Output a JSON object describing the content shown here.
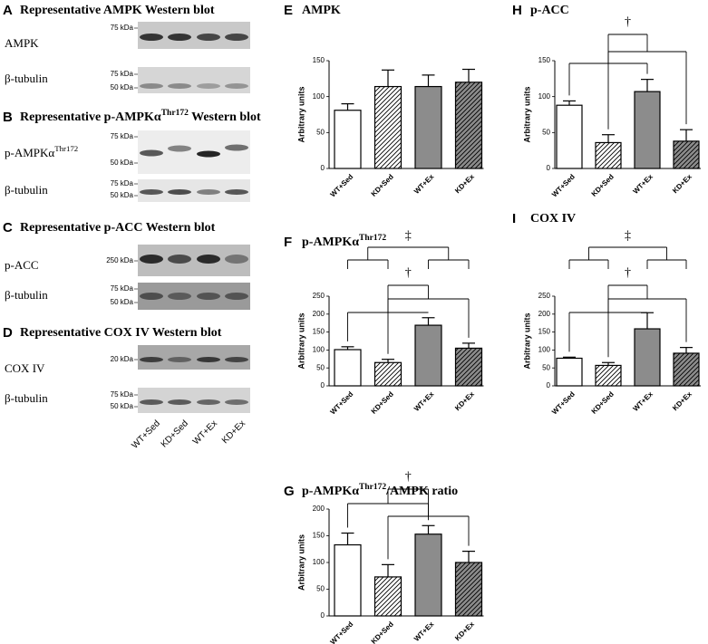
{
  "blots": [
    {
      "panel": "A",
      "title": [
        {
          "text": "Representative AMPK Western blot"
        }
      ],
      "rows": [
        {
          "label": [
            {
              "text": "AMPK"
            }
          ],
          "markers": [
            "75 kDa"
          ]
        },
        {
          "label": [
            {
              "text": "β-tubulin"
            }
          ],
          "markers": [
            "75 kDa",
            "50 kDa"
          ]
        }
      ]
    },
    {
      "panel": "B",
      "title": [
        {
          "text": "Representative p-AMPKα"
        },
        {
          "text": "Thr172",
          "sup": true
        },
        {
          "text": " Western blot"
        }
      ],
      "rows": [
        {
          "label": [
            {
              "text": "p-AMPKα"
            },
            {
              "text": "Thr172",
              "sup": true
            }
          ],
          "markers": [
            "75 kDa",
            "50 kDa"
          ]
        },
        {
          "label": [
            {
              "text": "β-tubulin"
            }
          ],
          "markers": [
            "75 kDa",
            "50 kDa"
          ]
        }
      ]
    },
    {
      "panel": "C",
      "title": [
        {
          "text": "Representative p-ACC Western blot"
        }
      ],
      "rows": [
        {
          "label": [
            {
              "text": "p-ACC"
            }
          ],
          "markers": [
            "250 kDa"
          ]
        },
        {
          "label": [
            {
              "text": "β-tubulin"
            }
          ],
          "markers": [
            "75 kDa",
            "50 kDa"
          ]
        }
      ]
    },
    {
      "panel": "D",
      "title": [
        {
          "text": "Representative COX IV Western blot"
        }
      ],
      "rows": [
        {
          "label": [
            {
              "text": "COX IV"
            }
          ],
          "markers": [
            "20 kDa"
          ]
        },
        {
          "label": [
            {
              "text": "β-tubulin"
            }
          ],
          "markers": [
            "75 kDa",
            "50 kDa"
          ]
        }
      ]
    }
  ],
  "lanes": [
    "WT+Sed",
    "KD+Sed",
    "WT+Ex",
    "KD+Ex"
  ],
  "chart_data": [
    {
      "type": "bar",
      "panel": "E",
      "title": [
        {
          "text": "AMPK"
        }
      ],
      "y_label": "Arbitrary units",
      "categories": [
        "WT+Sed",
        "KD+Sed",
        "WT+Ex",
        "KD+Ex"
      ],
      "values": [
        81,
        114,
        114,
        120
      ],
      "errors": [
        9,
        23,
        16,
        18
      ],
      "colors": [
        "#ffffff",
        "#ffffff",
        "#8c8c8c",
        "#8c8c8c"
      ],
      "hatch": [
        false,
        true,
        false,
        true
      ],
      "ylim": [
        0,
        150
      ],
      "yticks": [
        0,
        50,
        100,
        150
      ],
      "annotations": []
    },
    {
      "type": "bar",
      "panel": "F",
      "title": [
        {
          "text": "p-AMPKα"
        },
        {
          "text": "Thr172",
          "sup": true
        }
      ],
      "y_label": "Arbitrary units",
      "categories": [
        "WT+Sed",
        "KD+Sed",
        "WT+Ex",
        "KD+Ex"
      ],
      "values": [
        101,
        65,
        169,
        105
      ],
      "errors": [
        8,
        9,
        21,
        14
      ],
      "colors": [
        "#ffffff",
        "#ffffff",
        "#8c8c8c",
        "#8c8c8c"
      ],
      "hatch": [
        false,
        true,
        false,
        true
      ],
      "ylim": [
        0,
        250
      ],
      "yticks": [
        0,
        50,
        100,
        150,
        200,
        250
      ],
      "annotations": [
        "‡",
        "†"
      ]
    },
    {
      "type": "bar",
      "panel": "G",
      "title": [
        {
          "text": "p-AMPKα"
        },
        {
          "text": "Thr172",
          "sup": true
        },
        {
          "text": "/AMPK ratio"
        }
      ],
      "y_label": "Arbitrary units",
      "categories": [
        "WT+Sed",
        "KD+Sed",
        "WT+Ex",
        "KD+Ex"
      ],
      "values": [
        133,
        73,
        153,
        100
      ],
      "errors": [
        22,
        23,
        16,
        21
      ],
      "colors": [
        "#ffffff",
        "#ffffff",
        "#8c8c8c",
        "#8c8c8c"
      ],
      "hatch": [
        false,
        true,
        false,
        true
      ],
      "ylim": [
        0,
        200
      ],
      "yticks": [
        0,
        50,
        100,
        150,
        200
      ],
      "annotations": [
        "†"
      ]
    },
    {
      "type": "bar",
      "panel": "H",
      "title": [
        {
          "text": "p-ACC"
        }
      ],
      "y_label": "Arbitrary units",
      "categories": [
        "WT+Sed",
        "KD+Sed",
        "WT+Ex",
        "KD+Ex"
      ],
      "values": [
        88,
        36,
        107,
        38
      ],
      "errors": [
        6,
        11,
        17,
        16
      ],
      "colors": [
        "#ffffff",
        "#ffffff",
        "#8c8c8c",
        "#8c8c8c"
      ],
      "hatch": [
        false,
        true,
        false,
        true
      ],
      "ylim": [
        0,
        150
      ],
      "yticks": [
        0,
        50,
        100,
        150
      ],
      "annotations": [
        "†"
      ]
    },
    {
      "type": "bar",
      "panel": "I",
      "title": [
        {
          "text": "COX IV"
        }
      ],
      "y_label": "Arbitrary units",
      "categories": [
        "WT+Sed",
        "KD+Sed",
        "WT+Ex",
        "KD+Ex"
      ],
      "values": [
        77,
        57,
        159,
        91
      ],
      "errors": [
        3,
        8,
        45,
        16
      ],
      "colors": [
        "#ffffff",
        "#ffffff",
        "#8c8c8c",
        "#8c8c8c"
      ],
      "hatch": [
        false,
        true,
        false,
        true
      ],
      "ylim": [
        0,
        250
      ],
      "yticks": [
        0,
        50,
        100,
        150,
        200,
        250
      ],
      "annotations": [
        "‡",
        "†"
      ]
    }
  ]
}
